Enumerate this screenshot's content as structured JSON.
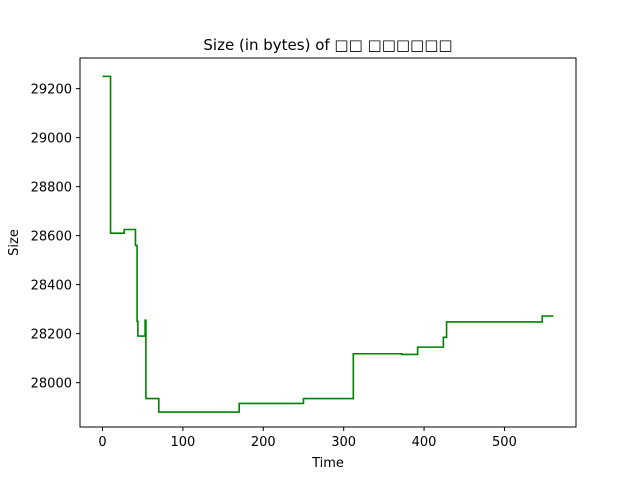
{
  "chart_data": {
    "type": "line",
    "title": "Size (in bytes) of □□ □□□□□□",
    "xlabel": "Time",
    "ylabel": "Size",
    "xlim": [
      -28,
      589
    ],
    "ylim": [
      27819,
      29325
    ],
    "xticks": [
      0,
      100,
      200,
      300,
      400,
      500
    ],
    "yticks": [
      28000,
      28200,
      28400,
      28600,
      28800,
      29000,
      29200
    ],
    "grid": false,
    "series": [
      {
        "color": "#008000",
        "x": [
          0,
          10,
          10,
          27,
          27,
          39,
          39,
          41,
          41,
          43,
          43,
          44,
          44,
          47,
          47,
          53,
          53,
          54,
          54,
          56,
          56,
          70,
          70,
          72,
          72,
          170,
          170,
          235,
          235,
          250,
          250,
          312,
          312,
          372,
          372,
          392,
          392,
          424,
          424,
          428,
          428,
          432,
          432,
          547,
          547,
          561
        ],
        "y": [
          29250,
          29250,
          28610,
          28610,
          28625,
          28625,
          28625,
          28625,
          28560,
          28560,
          28250,
          28250,
          28190,
          28190,
          28190,
          28190,
          28255,
          28255,
          27935,
          27935,
          27935,
          27935,
          27880,
          27880,
          27880,
          27880,
          27915,
          27915,
          27915,
          27915,
          27935,
          27935,
          28118,
          28118,
          28115,
          28115,
          28145,
          28145,
          28185,
          28185,
          28248,
          28248,
          28248,
          28248,
          28272,
          28272
        ]
      }
    ]
  }
}
